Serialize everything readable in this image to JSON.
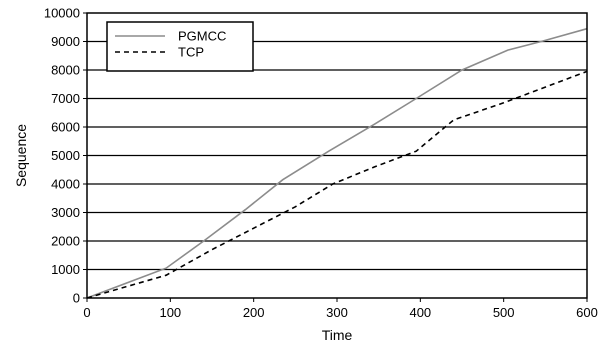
{
  "chart_data": {
    "type": "line",
    "xlabel": "Time",
    "ylabel": "Sequence",
    "xlim": [
      0,
      600
    ],
    "ylim": [
      0,
      10000
    ],
    "xticks": [
      0,
      100,
      200,
      300,
      400,
      500,
      600
    ],
    "yticks": [
      0,
      1000,
      2000,
      3000,
      4000,
      5000,
      6000,
      7000,
      8000,
      9000,
      10000
    ],
    "grid": "horizontal",
    "legend_position": "top-left",
    "series": [
      {
        "name": "PGMCC",
        "color": "#8c8c8c",
        "dash": "solid",
        "x": [
          0,
          95,
          140,
          190,
          235,
          290,
          345,
          395,
          450,
          505,
          545,
          600
        ],
        "y": [
          0,
          1050,
          2000,
          3100,
          4150,
          5150,
          6100,
          7000,
          8000,
          8700,
          9000,
          9450
        ]
      },
      {
        "name": "TCP",
        "color": "#000000",
        "dash": "dashed",
        "x": [
          0,
          95,
          150,
          200,
          250,
          295,
          345,
          395,
          440,
          500,
          550,
          600
        ],
        "y": [
          0,
          800,
          1700,
          2450,
          3200,
          4000,
          4600,
          5150,
          6250,
          6850,
          7400,
          7950
        ]
      }
    ]
  }
}
